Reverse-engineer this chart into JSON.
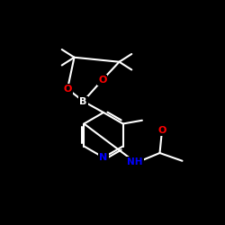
{
  "bg_color": "#000000",
  "bond_color": "#ffffff",
  "atom_colors": {
    "N": "#0000ff",
    "O": "#ff0000",
    "B": "#ffffff",
    "C": "#ffffff",
    "H": "#ffffff"
  },
  "line_width": 1.5,
  "figsize": [
    2.5,
    2.5
  ],
  "dpi": 100,
  "xlim": [
    0,
    10
  ],
  "ylim": [
    0,
    10
  ]
}
